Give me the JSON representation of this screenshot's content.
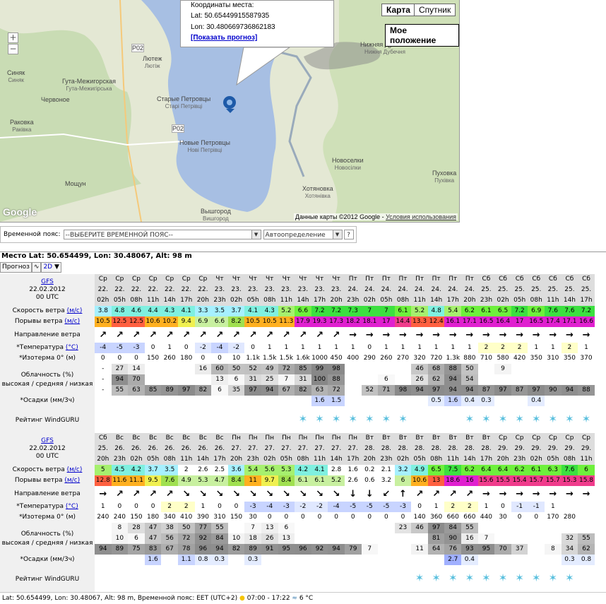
{
  "map": {
    "coords_title": "Координаты места:",
    "lat": "Lat: 50.65449915587935",
    "lon": "Lon: 30.480669736862183",
    "show_forecast": "[Показать прогноз]",
    "btn_map": "Карта",
    "btn_satellite": "Спутник",
    "btn_position": "Мое положение",
    "copyright": "Данные карты ©2012 Google - ",
    "terms": "Условия использования",
    "google": "Google",
    "labels": [
      {
        "t": "Лютеж",
        "s": "Лютіж"
      },
      {
        "t": "Синяк",
        "s": "Синяк"
      },
      {
        "t": "Гута-Межигорская",
        "s": "Гута-Межигірська"
      },
      {
        "t": "Червоное",
        "s": ""
      },
      {
        "t": "Старые Петровцы",
        "s": "Старі Петрівці"
      },
      {
        "t": "Раковка",
        "s": "Раківка"
      },
      {
        "t": "Новые Петровцы",
        "s": "Нові Петрівці"
      },
      {
        "t": "Мощун",
        "s": ""
      },
      {
        "t": "Вышгород",
        "s": "Вишгород"
      },
      {
        "t": "Нижняя Дубечня",
        "s": "Нижня Дубечня"
      },
      {
        "t": "Новоселки",
        "s": "Новосілки"
      },
      {
        "t": "Хотяновка",
        "s": "Хотянівка"
      },
      {
        "t": "Пуховка",
        "s": "Пухівка"
      },
      {
        "t": "Р02",
        "s": ""
      },
      {
        "t": "Р02",
        "s": ""
      }
    ]
  },
  "tz": {
    "label": "Временной пояс:",
    "select": "--ВЫБЕРИТЕ ВРЕМЕННОЙ ПОЯС--",
    "auto": "Автоопределение",
    "help": "?"
  },
  "header": "Место Lat: 50.654499, Lon: 30.48067, Alt: 98 m",
  "tabs": {
    "forecast": "Прогноз",
    "mode": "2D"
  },
  "labels": {
    "model": "GFS",
    "date": "22.02.2012",
    "run": "00 UTC",
    "wind": "Скорость ветра",
    "wind_unit": "(м/с)",
    "gust": "Порывы ветра",
    "gust_unit": "(м/с)",
    "dir": "Направление ветра",
    "temp": "*Температура",
    "temp_unit": "(°С)",
    "iso": "*Изотерма 0° (м)",
    "cloud1": "Облачность (%)",
    "cloud2": "высокая / средняя / низкая",
    "precip": "*Осадки (мм/3ч)",
    "rating": "Рейтинг WindGURU"
  },
  "block1": {
    "days": [
      "Ср",
      "Ср",
      "Ср",
      "Ср",
      "Ср",
      "Ср",
      "Ср",
      "Чт",
      "Чт",
      "Чт",
      "Чт",
      "Чт",
      "Чт",
      "Чт",
      "Чт",
      "Пт",
      "Пт",
      "Пт",
      "Пт",
      "Пт",
      "Пт",
      "Пт",
      "Пт",
      "Сб",
      "Сб",
      "Сб",
      "Сб",
      "Сб",
      "Сб",
      "Сб"
    ],
    "dates": [
      "22.",
      "22.",
      "22.",
      "22.",
      "22.",
      "22.",
      "22.",
      "23.",
      "23.",
      "23.",
      "23.",
      "23.",
      "23.",
      "23.",
      "23.",
      "24.",
      "24.",
      "24.",
      "24.",
      "24.",
      "24.",
      "24.",
      "24.",
      "25.",
      "25.",
      "25.",
      "25.",
      "25.",
      "25.",
      "25."
    ],
    "hours": [
      "02h",
      "05h",
      "08h",
      "11h",
      "14h",
      "17h",
      "20h",
      "23h",
      "02h",
      "05h",
      "08h",
      "11h",
      "14h",
      "17h",
      "20h",
      "23h",
      "02h",
      "05h",
      "08h",
      "11h",
      "14h",
      "17h",
      "20h",
      "23h",
      "02h",
      "05h",
      "08h",
      "11h",
      "14h",
      "17h"
    ],
    "wind": [
      "3.8",
      "4.8",
      "4.6",
      "4.4",
      "4.3",
      "4.1",
      "3.3",
      "3.5",
      "3.7",
      "4.1",
      "4.3",
      "5.2",
      "6.6",
      "7.2",
      "7.2",
      "7.3",
      "7",
      "7",
      "6.1",
      "5.2",
      "4.8",
      "5.4",
      "6.2",
      "6.1",
      "6.5",
      "7.2",
      "6.9",
      "7.6",
      "7.6",
      "7.2"
    ],
    "gust": [
      "10.5",
      "12.5",
      "12.5",
      "10.6",
      "10.2",
      "9.4",
      "6.9",
      "6.6",
      "8.2",
      "10.5",
      "10.5",
      "11.3",
      "17.9",
      "19.3",
      "17.3",
      "18.2",
      "18.1",
      "17",
      "14.4",
      "13.3",
      "12.4",
      "16.1",
      "17.1",
      "16.5",
      "16.4",
      "17",
      "16.5",
      "17.4",
      "17.1",
      "16.6"
    ],
    "dir": [
      "↗",
      "↗",
      "↗",
      "↗",
      "↗",
      "↗",
      "↗",
      "↗",
      "↗",
      "↗",
      "↗",
      "↗",
      "↗",
      "↗",
      "↗",
      "→",
      "→",
      "→",
      "→",
      "→",
      "→",
      "→",
      "→",
      "→",
      "→",
      "→",
      "→",
      "→",
      "→",
      "→"
    ],
    "temp": [
      "-4",
      "-5",
      "-3",
      "0",
      "1",
      "0",
      "-2",
      "-4",
      "-2",
      "0",
      "1",
      "1",
      "1",
      "1",
      "1",
      "1",
      "0",
      "1",
      "1",
      "1",
      "1",
      "1",
      "1",
      "2",
      "2",
      "2",
      "1",
      "1",
      "2",
      "1"
    ],
    "iso": [
      "0",
      "0",
      "0",
      "150",
      "260",
      "180",
      "0",
      "0",
      "10",
      "1.1k",
      "1.5k",
      "1.5k",
      "1.6k",
      "1000",
      "450",
      "400",
      "290",
      "260",
      "270",
      "320",
      "720",
      "1.3k",
      "880",
      "710",
      "580",
      "420",
      "350",
      "310",
      "350",
      "370"
    ],
    "cloud_h": [
      "-",
      "27",
      "14",
      "",
      "",
      "",
      "16",
      "60",
      "50",
      "52",
      "49",
      "72",
      "85",
      "99",
      "98",
      "",
      "",
      "",
      "",
      "46",
      "68",
      "88",
      "50",
      "",
      "9",
      "",
      "",
      "",
      "",
      ""
    ],
    "cloud_m": [
      "-",
      "94",
      "70",
      "",
      "",
      "",
      "",
      "13",
      "6",
      "31",
      "25",
      "7",
      "31",
      "100",
      "88",
      "",
      "",
      "6",
      "",
      "26",
      "62",
      "94",
      "54",
      "",
      "",
      "",
      "",
      "",
      "",
      ""
    ],
    "cloud_l": [
      "-",
      "55",
      "63",
      "85",
      "89",
      "97",
      "82",
      "6",
      "35",
      "97",
      "94",
      "67",
      "82",
      "63",
      "72",
      "",
      "52",
      "71",
      "98",
      "94",
      "97",
      "94",
      "94",
      "87",
      "97",
      "87",
      "97",
      "90",
      "94",
      "88"
    ],
    "precip": [
      "",
      "",
      "",
      "",
      "",
      "",
      "",
      "",
      "",
      "",
      "",
      "",
      "",
      "1.6",
      "1.5",
      "",
      "",
      "",
      "",
      "",
      "0.5",
      "1.6",
      "0.4",
      "0.3",
      "",
      "",
      "0.4",
      "",
      "",
      ""
    ],
    "stars": [
      0,
      0,
      0,
      0,
      0,
      0,
      0,
      0,
      0,
      0,
      0,
      0,
      1,
      1,
      1,
      1,
      1,
      1,
      1,
      0,
      0,
      0,
      1,
      1,
      1,
      1,
      1,
      1,
      1,
      1
    ]
  },
  "block2": {
    "days": [
      "Сб",
      "Вс",
      "Вс",
      "Вс",
      "Вс",
      "Вс",
      "Вс",
      "Вс",
      "Пн",
      "Пн",
      "Пн",
      "Пн",
      "Пн",
      "Пн",
      "Пн",
      "Пн",
      "Вт",
      "Вт",
      "Вт",
      "Вт",
      "Вт",
      "Вт",
      "Вт",
      "Вт",
      "Ср",
      "Ср",
      "Ср",
      "Ср",
      "Ср",
      "Ср"
    ],
    "dates": [
      "25.",
      "26.",
      "26.",
      "26.",
      "26.",
      "26.",
      "26.",
      "26.",
      "27.",
      "27.",
      "27.",
      "27.",
      "27.",
      "27.",
      "27.",
      "27.",
      "28.",
      "28.",
      "28.",
      "28.",
      "28.",
      "28.",
      "28.",
      "28.",
      "29.",
      "29.",
      "29.",
      "29.",
      "29.",
      "29."
    ],
    "hours": [
      "20h",
      "23h",
      "02h",
      "05h",
      "08h",
      "11h",
      "14h",
      "17h",
      "20h",
      "23h",
      "02h",
      "05h",
      "08h",
      "11h",
      "14h",
      "17h",
      "20h",
      "23h",
      "02h",
      "05h",
      "08h",
      "11h",
      "14h",
      "17h",
      "20h",
      "23h",
      "02h",
      "05h",
      "08h",
      "11h"
    ],
    "wind": [
      "5",
      "4.5",
      "4.2",
      "3.7",
      "3.5",
      "2",
      "2.6",
      "2.5",
      "3.6",
      "5.4",
      "5.6",
      "5.3",
      "4.2",
      "4.1",
      "2.8",
      "1.6",
      "0.2",
      "2.1",
      "3.2",
      "4.9",
      "6.5",
      "7.5",
      "6.2",
      "6.4",
      "6.4",
      "6.2",
      "6.1",
      "6.3",
      "7.6",
      "6"
    ],
    "gust": [
      "12.8",
      "11.6",
      "11.1",
      "9.5",
      "7.6",
      "4.9",
      "5.3",
      "4.7",
      "8.4",
      "11",
      "9.7",
      "8.4",
      "6.1",
      "6.1",
      "5.2",
      "2.6",
      "0.6",
      "3.2",
      "6",
      "10.6",
      "13",
      "18.6",
      "16",
      "15.6",
      "15.5",
      "15.4",
      "15.7",
      "15.7",
      "15.3",
      "15.8"
    ],
    "dir": [
      "→",
      "↗",
      "↗",
      "↗",
      "↗",
      "↘",
      "↘",
      "↘",
      "↘",
      "↘",
      "↘",
      "↘",
      "↘",
      "↘",
      "↘",
      "↓",
      "↓",
      "↙",
      "↑",
      "↗",
      "↗",
      "↗",
      "↗",
      "→",
      "→",
      "→",
      "→",
      "→",
      "→",
      "→"
    ],
    "temp": [
      "1",
      "0",
      "0",
      "0",
      "2",
      "2",
      "1",
      "0",
      "0",
      "-3",
      "-4",
      "-3",
      "-2",
      "-2",
      "-4",
      "-5",
      "-5",
      "-5",
      "-3",
      "0",
      "1",
      "2",
      "2",
      "1",
      "0",
      "-1",
      "-1",
      "1",
      "",
      ""
    ],
    "iso": [
      "240",
      "240",
      "150",
      "180",
      "340",
      "410",
      "390",
      "310",
      "150",
      "30",
      "0",
      "0",
      "0",
      "0",
      "0",
      "0",
      "0",
      "0",
      "0",
      "140",
      "360",
      "660",
      "660",
      "440",
      "30",
      "0",
      "0",
      "170",
      "280",
      ""
    ],
    "cloud_h": [
      "",
      "8",
      "28",
      "47",
      "38",
      "50",
      "77",
      "55",
      "",
      "7",
      "13",
      "6",
      "",
      "",
      "",
      "",
      "",
      "",
      "23",
      "46",
      "97",
      "84",
      "55",
      "",
      "",
      "",
      "",
      "",
      "",
      ""
    ],
    "cloud_m": [
      "",
      "10",
      "6",
      "47",
      "56",
      "72",
      "92",
      "84",
      "10",
      "18",
      "26",
      "13",
      "",
      "",
      "",
      "",
      "",
      "",
      "",
      "",
      "81",
      "90",
      "16",
      "7",
      "",
      "",
      "",
      "",
      "32",
      "55"
    ],
    "cloud_l": [
      "94",
      "89",
      "75",
      "83",
      "67",
      "78",
      "96",
      "94",
      "82",
      "89",
      "91",
      "95",
      "96",
      "92",
      "94",
      "79",
      "7",
      "",
      "",
      "11",
      "64",
      "76",
      "93",
      "95",
      "70",
      "37",
      "",
      "8",
      "34",
      "62"
    ],
    "precip": [
      "",
      "",
      "",
      "1.6",
      "",
      "1.1",
      "0.8",
      "0.3",
      "",
      "0.3",
      "",
      "",
      "",
      "",
      "",
      "",
      "",
      "",
      "",
      "",
      "",
      "2.7",
      "0.4",
      "",
      "",
      "",
      "",
      "",
      "0.3",
      "0.8"
    ],
    "stars": [
      0,
      0,
      0,
      0,
      0,
      0,
      0,
      0,
      0,
      0,
      0,
      0,
      0,
      0,
      0,
      0,
      0,
      0,
      0,
      1,
      1,
      1,
      1,
      1,
      1,
      1,
      1,
      1,
      1,
      0
    ]
  },
  "footer": {
    "text": "Lat: 50.654499, Lon: 30.48067, Alt: 98 m, Временной пояс: EET (UTC+2)",
    "sun": "07:00 - 17:22",
    "water": "6 °C"
  }
}
